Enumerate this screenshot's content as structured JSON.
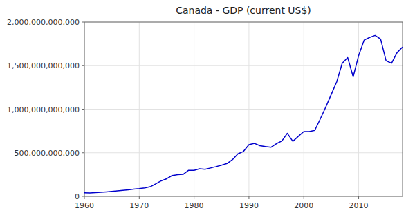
{
  "chart_data": {
    "type": "line",
    "title": "Canada - GDP (current US$)",
    "color": "#0000CC",
    "grid": true,
    "xlim": [
      1960,
      2018
    ],
    "ylim": [
      0,
      2000000000000
    ],
    "xticks": [
      1960,
      1970,
      1980,
      1990,
      2000,
      2010
    ],
    "yticks": [
      0,
      {
        "value": 500000000000,
        "label": "500,000,000,000"
      },
      {
        "value": 1000000000000,
        "label": "1,000,000,000,000"
      },
      {
        "value": 1500000000000,
        "label": "1,500,000,000,000"
      },
      {
        "value": 2000000000000,
        "label": "2,000,000,000,000"
      }
    ],
    "x": [
      1960,
      1961,
      1962,
      1963,
      1964,
      1965,
      1966,
      1967,
      1968,
      1969,
      1970,
      1971,
      1972,
      1973,
      1974,
      1975,
      1976,
      1977,
      1978,
      1979,
      1980,
      1981,
      1982,
      1983,
      1984,
      1985,
      1986,
      1987,
      1988,
      1989,
      1990,
      1991,
      1992,
      1993,
      1994,
      1995,
      1996,
      1997,
      1998,
      1999,
      2000,
      2001,
      2002,
      2003,
      2004,
      2005,
      2006,
      2007,
      2008,
      2009,
      2010,
      2011,
      2012,
      2013,
      2014,
      2015,
      2016,
      2017,
      2018
    ],
    "values": [
      41396000000,
      40423000000,
      42952000000,
      46763000000,
      51768000000,
      57622000000,
      64014000000,
      68700000000,
      74464000000,
      83374000000,
      88826000000,
      97288000000,
      109769000000,
      143387000000,
      178178000000,
      202163000000,
      239130000000,
      248546000000,
      252715000000,
      298867000000,
      298891000000,
      316218000000,
      311062000000,
      325254000000,
      340788000000,
      358248000000,
      376975000000,
      421088000000,
      488252000000,
      515270000000,
      593000000000,
      608050000000,
      581267000000,
      570289000000,
      563019000000,
      604659000000,
      635267000000,
      722917000000,
      631800000000,
      688783000000,
      742737000000,
      742782000000,
      757122000000,
      887673000000,
      1023406000000,
      1169289000000,
      1314608000000,
      1528178000000,
      1593137000000,
      1371145000000,
      1617343000000,
      1793327000000,
      1824269000000,
      1846597000000,
      1805750000000,
      1556509000000,
      1527990000000,
      1649270000000,
      1713342000000
    ]
  }
}
